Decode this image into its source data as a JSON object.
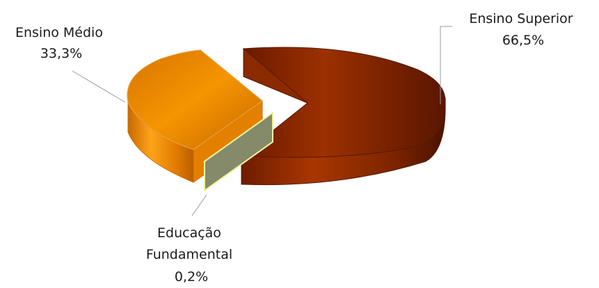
{
  "chart_data": {
    "type": "pie",
    "style": "3d-exploded",
    "slices": [
      {
        "category": "Ensino Superior",
        "value": 66.5,
        "label": "66,5%",
        "color": "#9e2e00"
      },
      {
        "category": "Ensino Médio",
        "value": 33.3,
        "label": "33,3%",
        "color": "#f28a00"
      },
      {
        "category_lines": [
          "Educação",
          "Fundamental"
        ],
        "value": 0.2,
        "label": "0,2%",
        "color": "#8a8f70"
      }
    ],
    "legend": "none"
  }
}
